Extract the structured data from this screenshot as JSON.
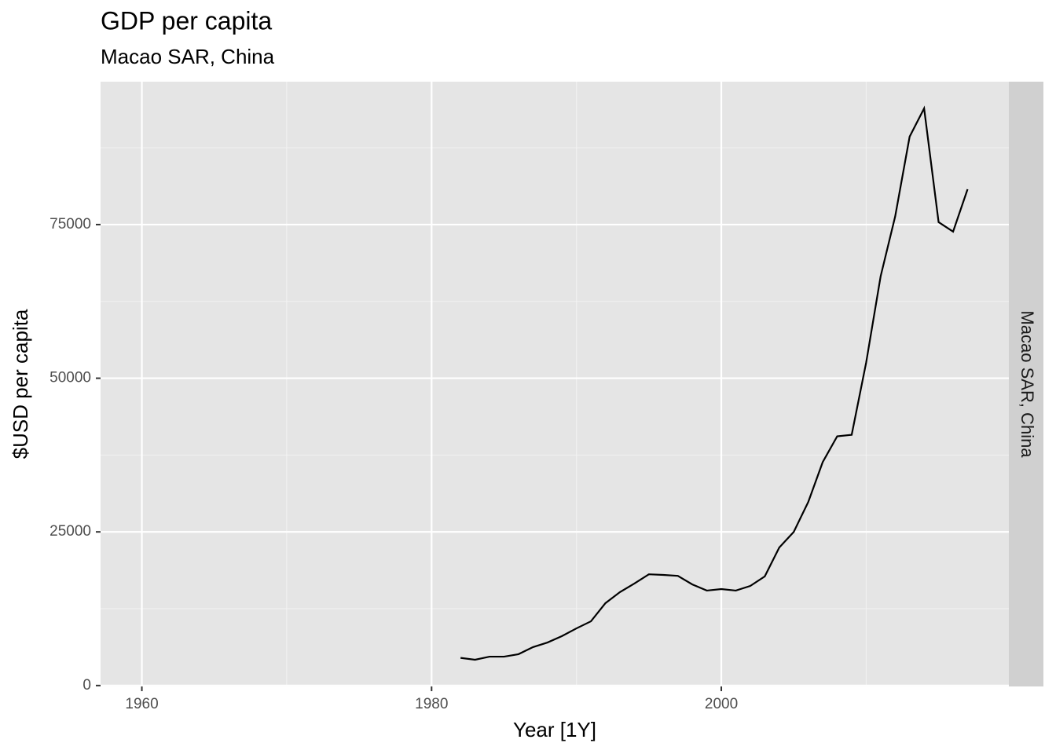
{
  "chart_data": {
    "type": "line",
    "title": "GDP per capita",
    "subtitle": "Macao SAR, China",
    "xlabel": "Year [1Y]",
    "ylabel": "$USD per capita",
    "facet_label": "Macao SAR, China",
    "x": [
      1982,
      1983,
      1984,
      1985,
      1986,
      1987,
      1988,
      1989,
      1990,
      1991,
      1992,
      1993,
      1994,
      1995,
      1996,
      1997,
      1998,
      1999,
      2000,
      2001,
      2002,
      2003,
      2004,
      2005,
      2006,
      2007,
      2008,
      2009,
      2010,
      2011,
      2012,
      2013,
      2014,
      2015,
      2016,
      2017
    ],
    "series": [
      {
        "color": "#000000",
        "values": [
          4500,
          4200,
          4700,
          4700,
          5100,
          6250,
          7000,
          8050,
          9300,
          10450,
          13400,
          15200,
          16600,
          18100,
          18000,
          17850,
          16450,
          15450,
          15700,
          15450,
          16200,
          17750,
          22450,
          25000,
          29850,
          36350,
          40550,
          40800,
          52550,
          66600,
          76300,
          89300,
          93900,
          75400,
          73850,
          80750
        ]
      }
    ],
    "xlim": [
      1957.15,
      2019.85
    ],
    "xticks": [
      1960,
      1980,
      2000
    ],
    "xminor": [
      1970,
      1990,
      2010
    ],
    "ylim": [
      -150,
      98250
    ],
    "yticks": [
      0,
      25000,
      50000,
      75000
    ],
    "yminor": [
      12500,
      37500,
      62500,
      87500
    ],
    "grid": true
  }
}
